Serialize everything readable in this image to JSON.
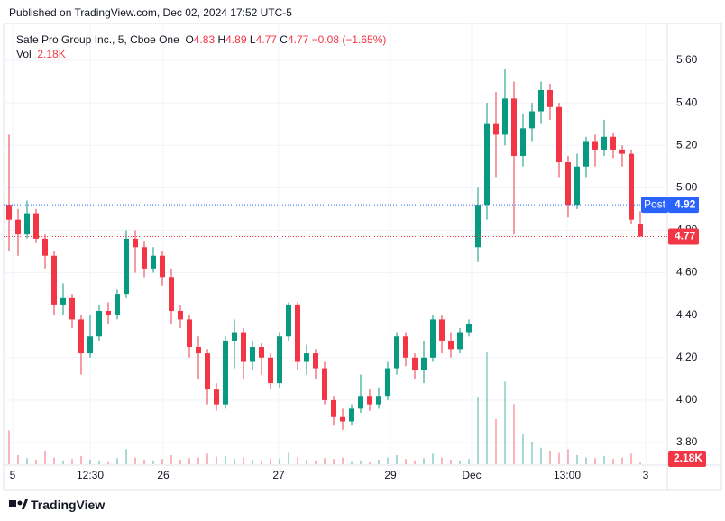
{
  "header": "Published on TradingView.com, Dec 02, 2024 17:52 UTC-5",
  "footer": "TradingView",
  "chart_data": {
    "type": "candlestick",
    "title": "Safe Pro Group Inc., 5, Cboe One",
    "legend": {
      "o_label": "O",
      "open": 4.83,
      "h_label": "H",
      "high": 4.89,
      "l_label": "L",
      "low": 4.77,
      "c_label": "C",
      "close": 4.77,
      "change": {
        "value": -0.08,
        "label": "−0.08"
      },
      "change_pct": {
        "value": -1.65,
        "label": "(−1.65%)"
      },
      "vol_label": "Vol",
      "vol": {
        "value": 2180,
        "label": "2.18K"
      }
    },
    "up_color": "#089981",
    "down_color": "#f23645",
    "open": [
      4.92,
      4.85,
      4.78,
      4.88,
      4.76,
      4.68,
      4.45,
      4.48,
      4.38,
      4.22,
      4.3,
      4.42,
      4.4,
      4.5,
      4.76,
      4.72,
      4.62,
      4.68,
      4.58,
      4.42,
      4.38,
      4.25,
      4.22,
      4.05,
      3.98,
      4.28,
      4.32,
      4.18,
      4.25,
      4.2,
      4.08,
      4.3,
      4.45,
      4.18,
      4.22,
      4.15,
      4.0,
      3.92,
      3.9,
      3.96,
      4.02,
      3.98,
      4.02,
      4.15,
      4.3,
      4.2,
      4.14,
      4.2,
      4.38,
      4.28,
      4.24,
      4.32,
      4.72,
      4.92,
      5.3,
      5.25,
      5.42,
      5.15,
      5.28,
      5.36,
      5.46,
      5.38,
      5.12,
      4.92,
      5.1,
      5.22,
      5.18,
      5.24,
      5.18,
      5.16,
      4.83
    ],
    "high": [
      5.25,
      4.9,
      4.94,
      4.9,
      4.78,
      4.7,
      4.55,
      4.5,
      4.4,
      4.4,
      4.45,
      4.46,
      4.52,
      4.8,
      4.8,
      4.75,
      4.72,
      4.7,
      4.62,
      4.45,
      4.4,
      4.3,
      4.24,
      4.08,
      4.3,
      4.38,
      4.34,
      4.28,
      4.27,
      4.22,
      4.32,
      4.46,
      4.46,
      4.26,
      4.24,
      4.18,
      4.02,
      3.96,
      3.98,
      4.12,
      4.05,
      4.06,
      4.18,
      4.32,
      4.32,
      4.22,
      4.28,
      4.4,
      4.4,
      4.32,
      4.34,
      4.38,
      5.0,
      5.4,
      5.45,
      5.56,
      5.5,
      5.35,
      5.4,
      5.5,
      5.49,
      5.4,
      5.15,
      5.16,
      5.24,
      5.25,
      5.32,
      5.26,
      5.2,
      5.18,
      4.89
    ],
    "low": [
      4.7,
      4.68,
      4.76,
      4.74,
      4.62,
      4.4,
      4.4,
      4.34,
      4.12,
      4.2,
      4.28,
      4.36,
      4.38,
      4.48,
      4.6,
      4.58,
      4.6,
      4.54,
      4.36,
      4.34,
      4.2,
      4.1,
      3.98,
      3.95,
      3.96,
      4.15,
      4.1,
      4.14,
      4.12,
      4.05,
      4.06,
      4.28,
      4.14,
      4.12,
      4.1,
      3.98,
      3.88,
      3.86,
      3.88,
      3.94,
      3.95,
      3.96,
      4.0,
      4.12,
      4.16,
      4.1,
      4.08,
      4.18,
      4.22,
      4.2,
      4.22,
      4.3,
      4.65,
      4.85,
      5.05,
      5.2,
      4.78,
      5.1,
      5.22,
      5.3,
      5.32,
      5.05,
      4.86,
      4.9,
      5.05,
      5.1,
      5.15,
      5.14,
      5.1,
      4.83,
      4.77
    ],
    "close": [
      4.85,
      4.78,
      4.88,
      4.76,
      4.68,
      4.45,
      4.48,
      4.38,
      4.22,
      4.3,
      4.42,
      4.4,
      4.5,
      4.76,
      4.72,
      4.62,
      4.68,
      4.58,
      4.42,
      4.38,
      4.25,
      4.22,
      4.05,
      3.98,
      4.28,
      4.32,
      4.18,
      4.25,
      4.2,
      4.08,
      4.3,
      4.45,
      4.18,
      4.22,
      4.15,
      4.0,
      3.92,
      3.9,
      3.96,
      4.02,
      3.98,
      4.02,
      4.15,
      4.3,
      4.2,
      4.14,
      4.2,
      4.38,
      4.28,
      4.24,
      4.32,
      4.36,
      4.92,
      5.3,
      5.25,
      5.42,
      5.15,
      5.28,
      5.36,
      5.46,
      5.38,
      5.12,
      4.92,
      5.1,
      5.22,
      5.18,
      5.24,
      5.18,
      5.16,
      4.85,
      4.77
    ],
    "volume": [
      45000,
      12000,
      8000,
      6000,
      18000,
      9000,
      5000,
      7000,
      11000,
      6000,
      5000,
      4000,
      8000,
      20000,
      9000,
      6000,
      5000,
      7000,
      12000,
      6000,
      8000,
      9000,
      14000,
      10000,
      11000,
      7000,
      9000,
      6000,
      5000,
      8000,
      7000,
      15000,
      9000,
      6000,
      5000,
      8000,
      7000,
      9000,
      4000,
      5000,
      3000,
      6000,
      9000,
      12000,
      7000,
      5000,
      8000,
      14000,
      9000,
      6000,
      5000,
      7000,
      90000,
      150000,
      60000,
      110000,
      80000,
      40000,
      30000,
      22000,
      18000,
      15000,
      20000,
      12000,
      9000,
      8000,
      11000,
      7000,
      9000,
      14000,
      2180
    ],
    "xlim": [
      0,
      72
    ],
    "xticks": [
      {
        "value": 0.9,
        "label": "5"
      },
      {
        "value": 9.5,
        "label": "12:30"
      },
      {
        "value": 17.6,
        "label": "26"
      },
      {
        "value": 30.4,
        "label": "27"
      },
      {
        "value": 42.8,
        "label": "29"
      },
      {
        "value": 51.8,
        "label": "Dec"
      },
      {
        "value": 62.4,
        "label": "13:00"
      },
      {
        "value": 71.1,
        "label": "3"
      }
    ],
    "ylim": [
      3.7,
      5.7
    ],
    "yticks": [
      {
        "value": 3.8,
        "label": "3.80"
      },
      {
        "value": 4.0,
        "label": "4.00"
      },
      {
        "value": 4.2,
        "label": "4.20"
      },
      {
        "value": 4.4,
        "label": "4.40"
      },
      {
        "value": 4.6,
        "label": "4.60"
      },
      {
        "value": 4.8,
        "label": "4.80"
      },
      {
        "value": 5.0,
        "label": "5.00"
      },
      {
        "value": 5.2,
        "label": "5.20"
      },
      {
        "value": 5.4,
        "label": "5.40"
      },
      {
        "value": 5.6,
        "label": "5.60"
      }
    ],
    "grid": true,
    "post": {
      "label": "Post",
      "value": 4.92,
      "color": "#2962ff"
    },
    "last": 4.77
  }
}
